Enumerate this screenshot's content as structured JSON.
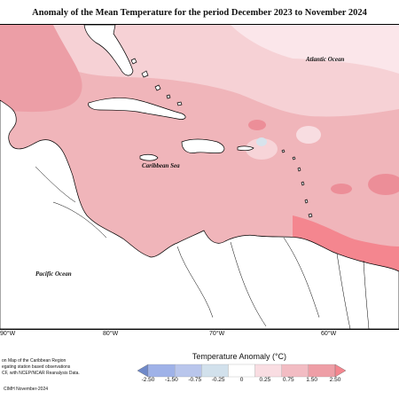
{
  "title": "Anomaly of the Mean Temperature for the period December 2023 to November 2024",
  "labels": {
    "atlantic": "Atlantic Ocean",
    "caribbean": "Caribbean Sea",
    "pacific": "Pacific Ocean"
  },
  "longitudes": [
    "90°W",
    "80°W",
    "70°W",
    "60°W"
  ],
  "credit_lines": [
    "on Map of the Caribbean Region",
    "egating station based observations",
    "CF, with NCEP/NCAR Reanalysis Data."
  ],
  "copyright": "CIMH November-2024",
  "legend": {
    "title": "Temperature Anomaly (°C)",
    "ticks": [
      "-2.50",
      "-1.50",
      "-0.75",
      "-0.25",
      "0",
      "0.25",
      "0.75",
      "1.50",
      "2.50"
    ],
    "colors": [
      "#6f89c9",
      "#9fb2e8",
      "#b9c6ec",
      "#d2e1ec",
      "#ffffff",
      "#f9dde2",
      "#f2bcc3",
      "#ee9ea6",
      "#f4868f"
    ]
  }
}
